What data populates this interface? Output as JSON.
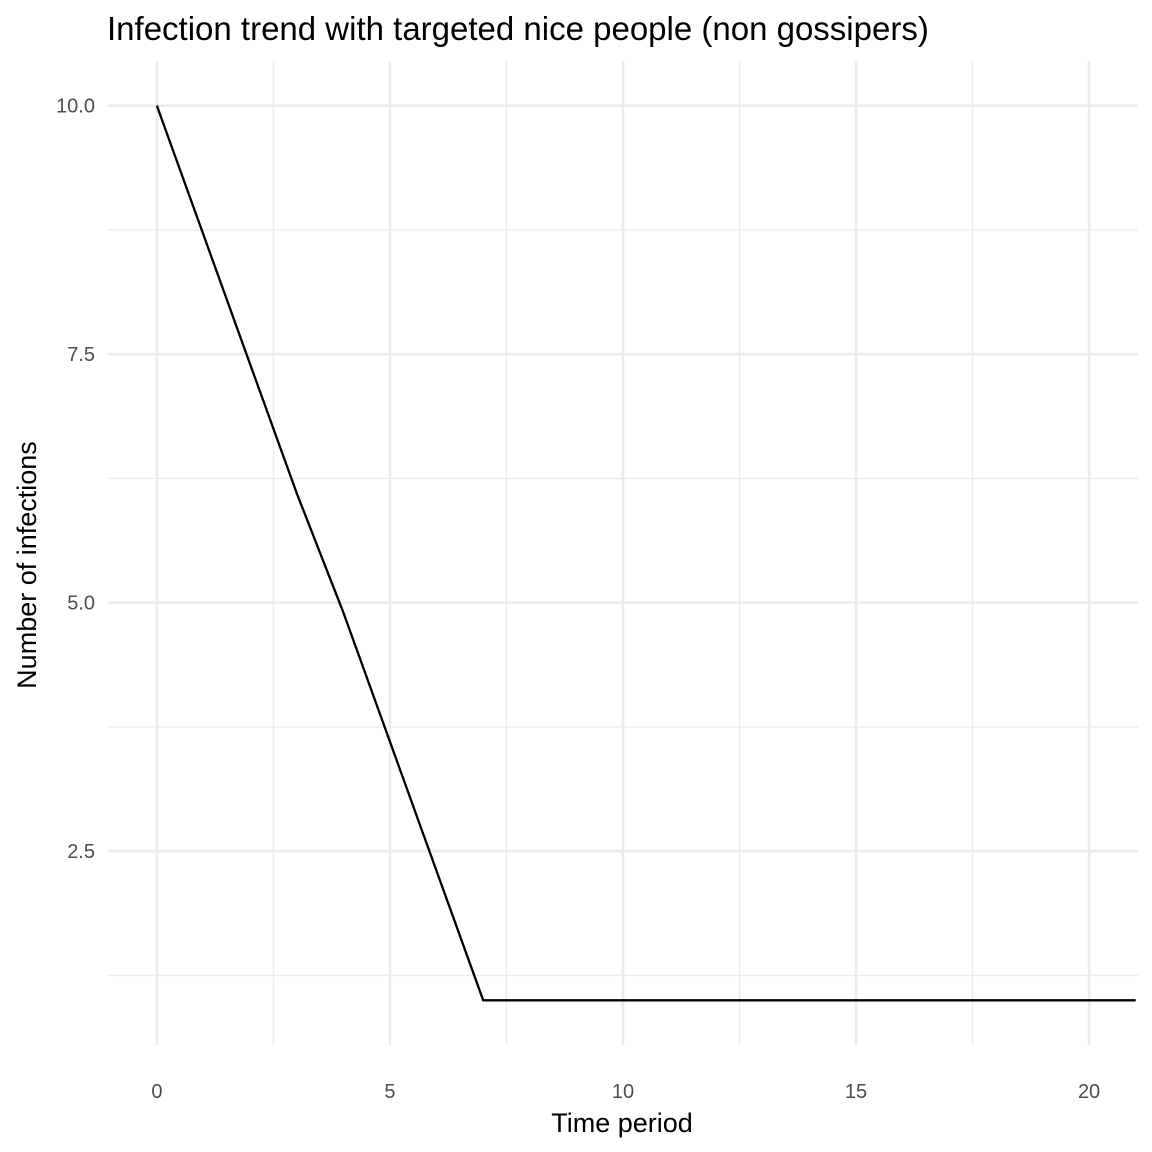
{
  "chart_data": {
    "type": "line",
    "title": "Infection trend with targeted nice people (non gossipers)",
    "xlabel": "Time period",
    "ylabel": "Number of infections",
    "xlim": [
      -1.05,
      21.05
    ],
    "ylim": [
      0.55,
      10.45
    ],
    "xticks": [
      0,
      5,
      10,
      15,
      20
    ],
    "xtick_labels": [
      "0",
      "5",
      "10",
      "15",
      "20"
    ],
    "xminor": [
      2.5,
      7.5,
      12.5,
      17.5
    ],
    "yticks": [
      2.5,
      5.0,
      7.5,
      10.0
    ],
    "ytick_labels": [
      "2.5",
      "5.0",
      "7.5",
      "10.0"
    ],
    "yminor": [
      1.25,
      3.75,
      6.25,
      8.75
    ],
    "grid": true,
    "series": [
      {
        "color": "#000000",
        "x": [
          0,
          1,
          2,
          3,
          4,
          5,
          6,
          7,
          8,
          9,
          10,
          11,
          12,
          13,
          14,
          15,
          16,
          17,
          18,
          19,
          20,
          21
        ],
        "y": [
          10,
          8.7,
          7.4,
          6.1,
          4.9,
          3.6,
          2.3,
          1,
          1,
          1,
          1,
          1,
          1,
          1,
          1,
          1,
          1,
          1,
          1,
          1,
          1,
          1
        ]
      }
    ]
  }
}
